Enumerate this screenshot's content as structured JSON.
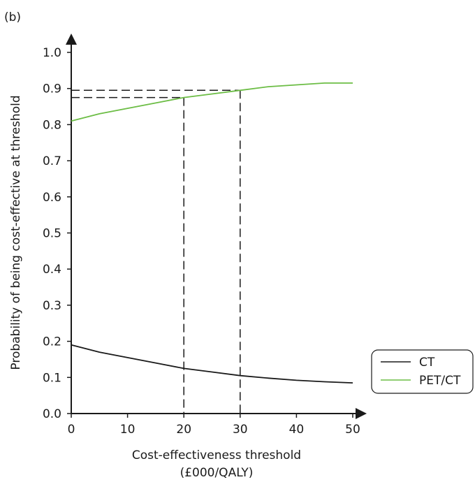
{
  "panel_label": "(b)",
  "chart_data": {
    "type": "line",
    "xlabel_line1": "Cost-effectiveness threshold",
    "xlabel_line2": "(£000/QALY)",
    "ylabel": "Probability of being cost-effective at threshold",
    "xlim": [
      0,
      50
    ],
    "ylim": [
      0.0,
      1.0
    ],
    "x_ticks": [
      "0",
      "10",
      "20",
      "30",
      "40",
      "50"
    ],
    "y_ticks": [
      "0.0",
      "0.1",
      "0.2",
      "0.3",
      "0.4",
      "0.5",
      "0.6",
      "0.7",
      "0.8",
      "0.9",
      "1.0"
    ],
    "x": [
      0,
      5,
      10,
      15,
      20,
      25,
      30,
      35,
      40,
      45,
      50
    ],
    "series": [
      {
        "name": "CT",
        "color": "#1a1a1a",
        "values": [
          0.19,
          0.17,
          0.155,
          0.14,
          0.125,
          0.115,
          0.105,
          0.098,
          0.092,
          0.088,
          0.085
        ]
      },
      {
        "name": "PET/CT",
        "color": "#6cbd45",
        "values": [
          0.81,
          0.83,
          0.845,
          0.86,
          0.875,
          0.885,
          0.895,
          0.905,
          0.91,
          0.915,
          0.915
        ]
      }
    ],
    "reference_lines": [
      {
        "x": 20,
        "y": 0.875
      },
      {
        "x": 30,
        "y": 0.895
      }
    ],
    "legend": [
      "CT",
      "PET/CT"
    ],
    "legend_position": "right",
    "grid": false
  }
}
